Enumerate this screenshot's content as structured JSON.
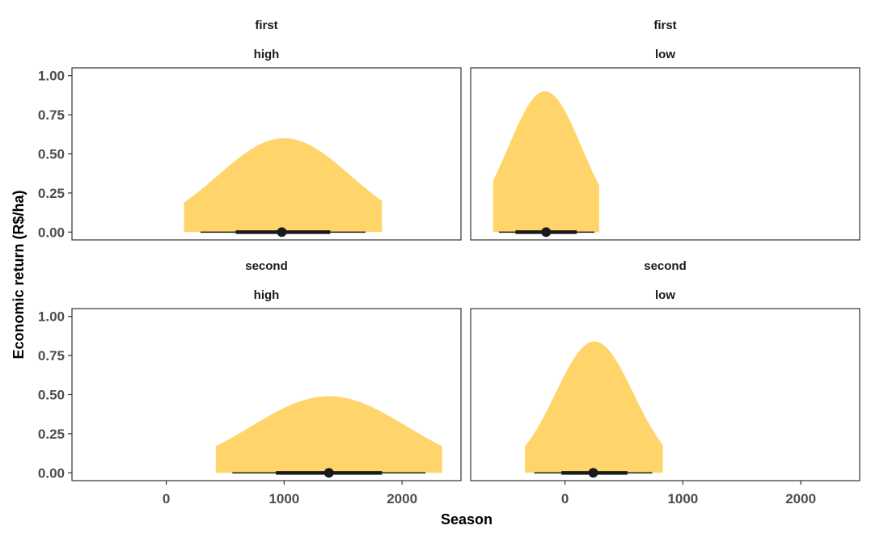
{
  "chart_data": {
    "type": "area",
    "xlabel": "Season",
    "ylabel": "Economic return (R$/ha)",
    "xlim": [
      -800,
      2500
    ],
    "ylim": [
      -0.05,
      1.05
    ],
    "x_ticks": [
      0,
      1000,
      2000
    ],
    "x_tick_labels": [
      "0",
      "1000",
      "2000"
    ],
    "y_ticks": [
      0,
      0.25,
      0.5,
      0.75,
      1.0
    ],
    "y_tick_labels": [
      "0.00",
      "0.25",
      "0.50",
      "0.75",
      "1.00"
    ],
    "grid": false,
    "fill_color": "#FFD56B",
    "interval_color": "#1a1a1a",
    "panels": [
      {
        "strip_top": "first",
        "strip_bottom": "high",
        "density": {
          "mean": 1000,
          "sd": 560,
          "peak": 0.6,
          "x_min": 150,
          "x_max": 1830
        },
        "point": 980,
        "interval_66": [
          590,
          1390
        ],
        "interval_95": [
          290,
          1690
        ]
      },
      {
        "strip_top": "first",
        "strip_bottom": "low",
        "density": {
          "mean": -170,
          "sd": 310,
          "peak": 0.9,
          "x_min": -610,
          "x_max": 290
        },
        "point": -160,
        "interval_66": [
          -420,
          100
        ],
        "interval_95": [
          -560,
          250
        ]
      },
      {
        "strip_top": "second",
        "strip_bottom": "high",
        "density": {
          "mean": 1380,
          "sd": 660,
          "peak": 0.49,
          "x_min": 420,
          "x_max": 2340
        },
        "point": 1380,
        "interval_66": [
          930,
          1830
        ],
        "interval_95": [
          560,
          2200
        ]
      },
      {
        "strip_top": "second",
        "strip_bottom": "low",
        "density": {
          "mean": 250,
          "sd": 330,
          "peak": 0.84,
          "x_min": -340,
          "x_max": 830
        },
        "point": 240,
        "interval_66": [
          -30,
          530
        ],
        "interval_95": [
          -260,
          740
        ]
      }
    ]
  }
}
